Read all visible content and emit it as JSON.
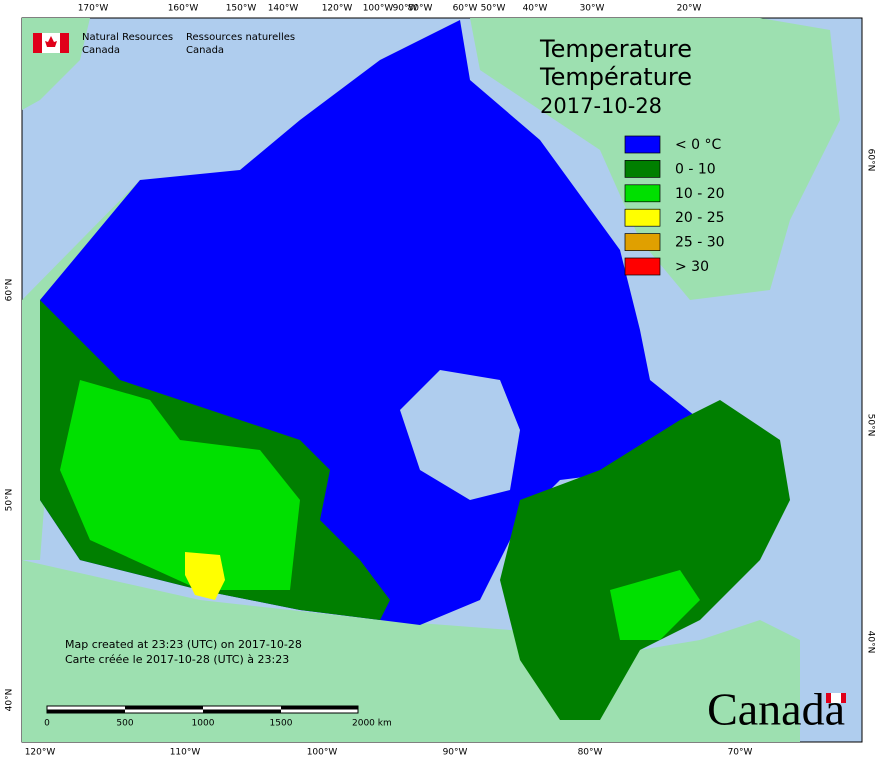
{
  "header": {
    "agency_en": "Natural Resources",
    "country_en": "Canada",
    "agency_fr": "Ressources naturelles",
    "country_fr": "Canada"
  },
  "title": {
    "line1": "Temperature",
    "line2": "Température",
    "date": "2017-10-28"
  },
  "legend": [
    {
      "label": "< 0 °C",
      "color": "#0000ff"
    },
    {
      "label": "0 - 10",
      "color": "#007f00"
    },
    {
      "label": "10 - 20",
      "color": "#00e000"
    },
    {
      "label": "20 - 25",
      "color": "#ffff00"
    },
    {
      "label": "25 - 30",
      "color": "#e0a000"
    },
    {
      "label": "> 30",
      "color": "#ff0000"
    }
  ],
  "graticule": {
    "top": [
      "170°W",
      "160°W",
      "150°W",
      "140°W",
      "120°W",
      "100°W",
      "90°W",
      "80°W",
      "60°W",
      "50°W",
      "40°W",
      "30°W",
      "20°W"
    ],
    "bottom": [
      "120°W",
      "110°W",
      "100°W",
      "90°W",
      "80°W",
      "70°W"
    ],
    "left": [
      "60°N",
      "50°N",
      "40°N"
    ],
    "right": [
      "60°N",
      "50°N",
      "40°N"
    ]
  },
  "credits": {
    "en": "Map created at 23:23 (UTC) on 2017-10-28",
    "fr": "Carte créée le 2017-10-28 (UTC) à 23:23"
  },
  "scale": {
    "labels": [
      "0",
      "500",
      "1000",
      "1500",
      "2000 km"
    ]
  },
  "wordmark": "Canada"
}
